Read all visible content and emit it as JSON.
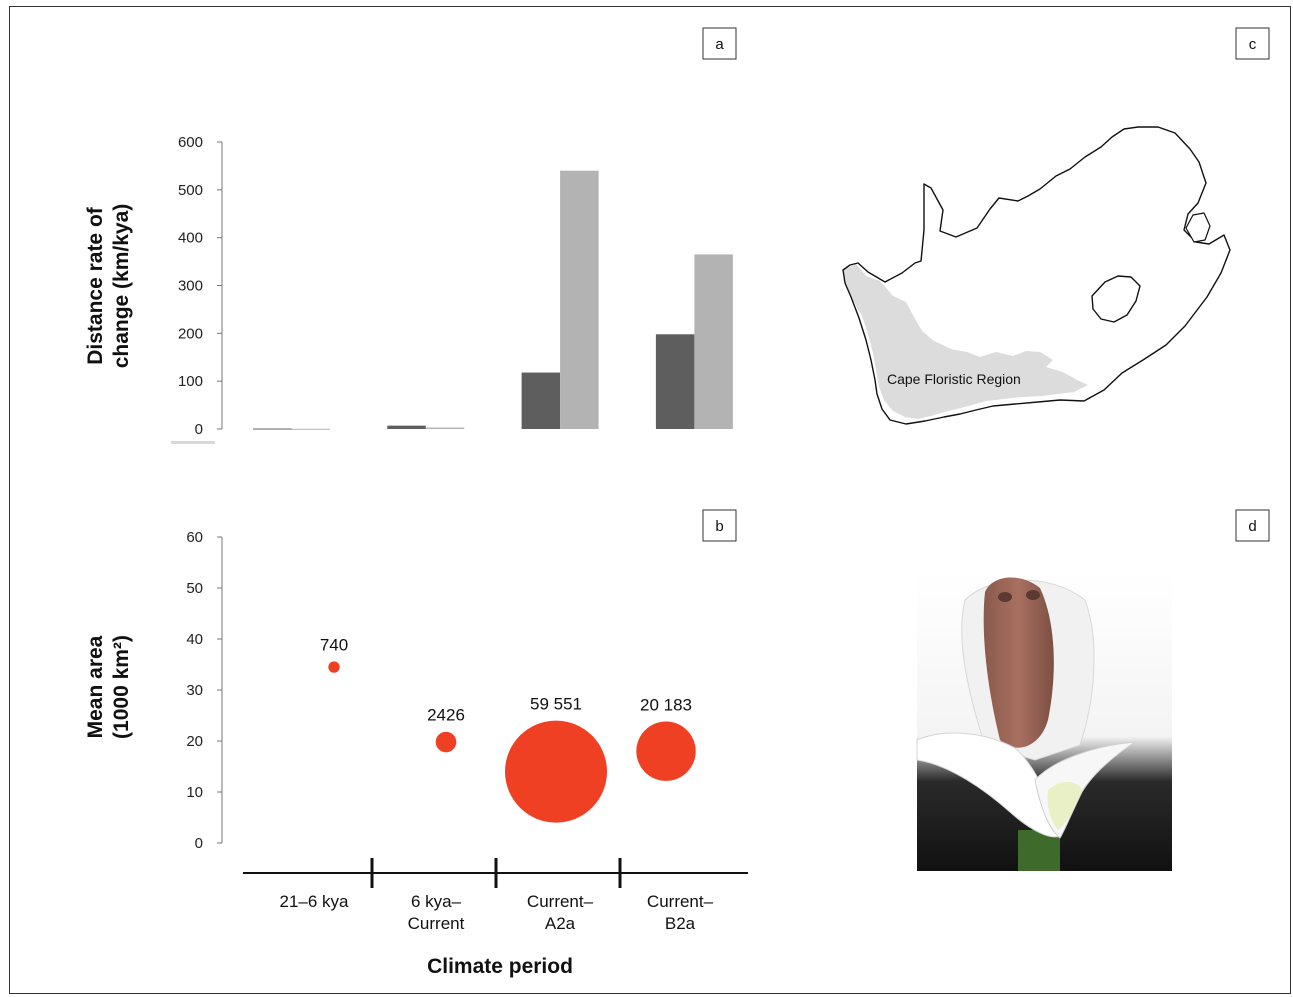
{
  "panels": {
    "a": "a",
    "b": "b",
    "c": "c",
    "d": "d"
  },
  "colors": {
    "dark_bar": "#5e5e5e",
    "light_bar": "#b3b3b3",
    "bubble": "#ef4024",
    "cfr_fill": "#dcdcdc"
  },
  "map": {
    "region_label": "Cape Floristic Region"
  },
  "photo": {
    "subject": "frog-in-calla-lily"
  },
  "chart_data": [
    {
      "type": "bar",
      "panel": "a",
      "categories": [
        "21–6 kya",
        "6 kya–Current",
        "Current–A2a",
        "Current–B2a"
      ],
      "series": [
        {
          "values": [
            1,
            7,
            118,
            198
          ]
        },
        {
          "values": [
            0.5,
            3,
            540,
            365
          ]
        }
      ],
      "ylabel_lines": [
        "Distance rate of",
        "change (km/kya)"
      ],
      "yticks": [
        0,
        100,
        200,
        300,
        400,
        500,
        600
      ],
      "ylim": [
        0,
        600
      ],
      "grid": false
    },
    {
      "type": "scatter",
      "panel": "b",
      "categories": [
        "21–6 kya",
        "6 kya–Current",
        "Current–A2a",
        "Current–B2a"
      ],
      "x_label_lines": [
        [
          "21–6 kya"
        ],
        [
          "6 kya–",
          "Current"
        ],
        [
          "Current–",
          "A2a"
        ],
        [
          "Current–",
          "B2a"
        ]
      ],
      "points": [
        {
          "x": "21–6 kya",
          "y": 34.5,
          "size": 740,
          "label": "740"
        },
        {
          "x": "6 kya–Current",
          "y": 19.8,
          "size": 2426,
          "label": "2426"
        },
        {
          "x": "Current–A2a",
          "y": 14,
          "size": 59551,
          "label": "59 551"
        },
        {
          "x": "Current–B2a",
          "y": 18,
          "size": 20183,
          "label": "20 183"
        }
      ],
      "ylabel_lines": [
        "Mean area",
        "(1000 km²)"
      ],
      "xlabel": "Climate period",
      "yticks": [
        0,
        10,
        20,
        30,
        40,
        50,
        60
      ],
      "ylim": [
        0,
        60
      ],
      "grid": false
    }
  ]
}
